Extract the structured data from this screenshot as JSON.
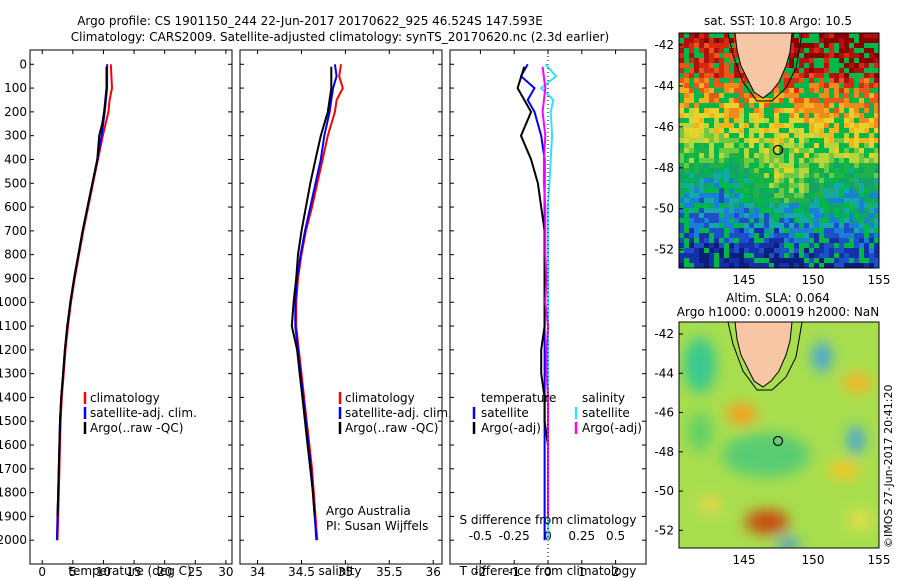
{
  "title_line1": "Argo profile: CS 1901150_244 22-Jun-2017 20170622_925 46.524S 147.593E",
  "title_line2": "Climatology: CARS2009. Satellite-adjusted climatology: synTS_20170620.nc (2.3d earlier)",
  "colors": {
    "climatology": "#ff0000",
    "satellite": "#0000ff",
    "argo": "#000000",
    "sal_satellite": "#33e0ff",
    "sal_argo": "#ff00ff"
  },
  "panel1": {
    "xlabel": "temperature (deg C)",
    "legend": [
      "climatology",
      "satellite-adj. clim.",
      "Argo(..raw -QC)"
    ]
  },
  "panel2": {
    "xlabel": "salinity",
    "legend": [
      "climatology",
      "satellite-adj. clim.",
      "Argo(..raw -QC)"
    ],
    "note1": "Argo Australia",
    "note2": "PI: Susan Wijffels"
  },
  "panel3": {
    "xlabel": "T difference from climatology",
    "s_label": "S difference from climatology",
    "legend_temp_title": "temperature",
    "legend_sal_title": "salinity",
    "legend_temp": [
      "satellite",
      "Argo(-adj)"
    ],
    "legend_sal": [
      "satellite",
      "Argo(-adj)"
    ]
  },
  "map_top": {
    "title": "sat. SST: 10.8 Argo: 10.5",
    "yticks": [
      "-42",
      "-44",
      "-46",
      "-48",
      "-50",
      "-52"
    ],
    "xticks": [
      "145",
      "150",
      "155"
    ]
  },
  "map_bottom": {
    "title1": "Altim. SLA: 0.064",
    "title2": "Argo h1000: 0.00019 h2000: NaN",
    "yticks": [
      "-42",
      "-44",
      "-46",
      "-48",
      "-50",
      "-52"
    ],
    "xticks": [
      "145",
      "150",
      "155"
    ]
  },
  "credit": "©IMOS 27-Jun-2017 20:41:20",
  "chart_data": [
    {
      "type": "line",
      "xlabel": "temperature (deg C)",
      "ylabel": "",
      "xlim": [
        -2,
        31
      ],
      "ylim": [
        2100,
        0
      ],
      "xticks": [
        0,
        5,
        10,
        15,
        20,
        25,
        30
      ],
      "yticks": [
        0,
        100,
        200,
        300,
        400,
        500,
        600,
        700,
        800,
        900,
        1000,
        1100,
        1200,
        1300,
        1400,
        1500,
        1600,
        1700,
        1800,
        1900,
        2000
      ],
      "series": [
        {
          "name": "climatology",
          "color": "#ff0000",
          "points": [
            [
              11.2,
              0
            ],
            [
              11.4,
              100
            ],
            [
              11.0,
              150
            ],
            [
              10.8,
              200
            ],
            [
              9.9,
              300
            ],
            [
              9.1,
              400
            ],
            [
              8.3,
              500
            ],
            [
              7.5,
              600
            ],
            [
              6.7,
              700
            ],
            [
              6.0,
              800
            ],
            [
              5.3,
              900
            ],
            [
              4.7,
              1000
            ],
            [
              4.2,
              1100
            ],
            [
              3.8,
              1200
            ],
            [
              3.5,
              1300
            ],
            [
              3.2,
              1400
            ],
            [
              3.0,
              1500
            ],
            [
              2.9,
              1600
            ],
            [
              2.8,
              1700
            ],
            [
              2.7,
              1800
            ],
            [
              2.6,
              1900
            ],
            [
              2.5,
              2000
            ]
          ]
        },
        {
          "name": "satellite-adj. clim.",
          "color": "#0000ff",
          "points": [
            [
              10.6,
              0
            ],
            [
              10.6,
              100
            ],
            [
              10.4,
              150
            ],
            [
              10.2,
              200
            ],
            [
              9.7,
              300
            ],
            [
              9.0,
              400
            ],
            [
              8.2,
              500
            ],
            [
              7.4,
              600
            ],
            [
              6.6,
              700
            ],
            [
              5.9,
              800
            ],
            [
              5.2,
              900
            ],
            [
              4.6,
              1000
            ],
            [
              4.1,
              1100
            ],
            [
              3.7,
              1200
            ],
            [
              3.4,
              1300
            ],
            [
              3.1,
              1400
            ],
            [
              2.9,
              1500
            ],
            [
              2.8,
              1600
            ],
            [
              2.7,
              1700
            ],
            [
              2.6,
              1800
            ],
            [
              2.5,
              1900
            ],
            [
              2.4,
              2000
            ]
          ]
        },
        {
          "name": "Argo(..raw -QC)",
          "color": "#000000",
          "points": [
            [
              10.5,
              10
            ],
            [
              10.5,
              100
            ],
            [
              10.3,
              150
            ],
            [
              10.1,
              200
            ],
            [
              9.8,
              250
            ],
            [
              9.3,
              300
            ],
            [
              9.0,
              400
            ],
            [
              8.2,
              500
            ],
            [
              7.4,
              600
            ],
            [
              6.6,
              700
            ],
            [
              5.9,
              800
            ],
            [
              5.2,
              900
            ],
            [
              4.6,
              1000
            ],
            [
              4.1,
              1100
            ],
            [
              3.7,
              1200
            ],
            [
              3.4,
              1300
            ],
            [
              3.1,
              1400
            ],
            [
              2.9,
              1500
            ],
            [
              2.8,
              1600
            ],
            [
              2.7,
              1700
            ],
            [
              2.6,
              1800
            ],
            [
              2.5,
              1900
            ]
          ]
        }
      ]
    },
    {
      "type": "line",
      "xlabel": "salinity",
      "xlim": [
        33.8,
        36.1
      ],
      "ylim": [
        2100,
        0
      ],
      "xticks": [
        34,
        34.5,
        35,
        35.5,
        36
      ],
      "series": [
        {
          "name": "climatology",
          "color": "#ff0000",
          "points": [
            [
              34.95,
              0
            ],
            [
              34.93,
              50
            ],
            [
              34.97,
              100
            ],
            [
              34.9,
              150
            ],
            [
              34.88,
              200
            ],
            [
              34.8,
              300
            ],
            [
              34.74,
              400
            ],
            [
              34.68,
              500
            ],
            [
              34.62,
              600
            ],
            [
              34.55,
              700
            ],
            [
              34.5,
              800
            ],
            [
              34.46,
              900
            ],
            [
              34.44,
              1000
            ],
            [
              34.44,
              1100
            ],
            [
              34.47,
              1200
            ],
            [
              34.5,
              1300
            ],
            [
              34.53,
              1400
            ],
            [
              34.56,
              1500
            ],
            [
              34.59,
              1600
            ],
            [
              34.62,
              1700
            ],
            [
              34.64,
              1800
            ],
            [
              34.66,
              1900
            ],
            [
              34.68,
              2000
            ]
          ]
        },
        {
          "name": "satellite-adj. clim.",
          "color": "#0000ff",
          "points": [
            [
              34.88,
              0
            ],
            [
              34.9,
              50
            ],
            [
              34.86,
              100
            ],
            [
              34.84,
              150
            ],
            [
              34.82,
              200
            ],
            [
              34.76,
              300
            ],
            [
              34.72,
              400
            ],
            [
              34.66,
              500
            ],
            [
              34.6,
              600
            ],
            [
              34.54,
              700
            ],
            [
              34.49,
              800
            ],
            [
              34.45,
              900
            ],
            [
              34.43,
              1000
            ],
            [
              34.43,
              1100
            ],
            [
              34.46,
              1200
            ],
            [
              34.49,
              1300
            ],
            [
              34.52,
              1400
            ],
            [
              34.55,
              1500
            ],
            [
              34.58,
              1600
            ],
            [
              34.61,
              1700
            ],
            [
              34.63,
              1800
            ],
            [
              34.65,
              1900
            ],
            [
              34.67,
              2000
            ]
          ]
        },
        {
          "name": "Argo(..raw -QC)",
          "color": "#000000",
          "points": [
            [
              34.84,
              10
            ],
            [
              34.84,
              100
            ],
            [
              34.8,
              200
            ],
            [
              34.72,
              300
            ],
            [
              34.66,
              400
            ],
            [
              34.6,
              500
            ],
            [
              34.55,
              600
            ],
            [
              34.5,
              700
            ],
            [
              34.46,
              800
            ],
            [
              34.44,
              900
            ],
            [
              34.41,
              1000
            ],
            [
              34.39,
              1100
            ],
            [
              34.45,
              1200
            ],
            [
              34.48,
              1300
            ],
            [
              34.51,
              1400
            ],
            [
              34.54,
              1500
            ],
            [
              34.57,
              1600
            ],
            [
              34.6,
              1700
            ],
            [
              34.63,
              1800
            ],
            [
              34.65,
              1900
            ]
          ]
        }
      ]
    },
    {
      "type": "line",
      "xlabel": "T difference from climatology",
      "x2label": "S difference from climatology",
      "xlim": [
        -2.9,
        2.9
      ],
      "x2lim": [
        -0.725,
        0.725
      ],
      "ylim": [
        2100,
        0
      ],
      "xticks": [
        -2,
        -1,
        0,
        1,
        2
      ],
      "x2ticks": [
        "-0.5",
        "-0.25",
        "0",
        "0.25",
        "0.5"
      ],
      "series": [
        {
          "name": "temperature satellite",
          "color": "#0000ff",
          "axis": "T",
          "points": [
            [
              -0.6,
              0
            ],
            [
              -0.8,
              50
            ],
            [
              -0.4,
              100
            ],
            [
              -0.6,
              150
            ],
            [
              -0.4,
              200
            ],
            [
              -0.2,
              300
            ],
            [
              -0.1,
              400
            ],
            [
              -0.1,
              500
            ],
            [
              -0.1,
              600
            ],
            [
              -0.1,
              700
            ],
            [
              -0.1,
              800
            ],
            [
              -0.1,
              900
            ],
            [
              -0.1,
              1000
            ],
            [
              -0.1,
              1100
            ],
            [
              -0.1,
              1200
            ],
            [
              -0.1,
              1300
            ],
            [
              -0.1,
              1400
            ],
            [
              -0.1,
              1500
            ],
            [
              -0.1,
              1600
            ],
            [
              -0.1,
              1700
            ],
            [
              -0.1,
              1800
            ],
            [
              -0.1,
              1900
            ],
            [
              -0.1,
              2000
            ]
          ]
        },
        {
          "name": "temperature Argo(-adj)",
          "color": "#000000",
          "axis": "T",
          "points": [
            [
              -0.7,
              10
            ],
            [
              -0.9,
              100
            ],
            [
              -0.5,
              200
            ],
            [
              -0.8,
              300
            ],
            [
              -0.5,
              400
            ],
            [
              -0.3,
              500
            ],
            [
              -0.2,
              600
            ],
            [
              -0.1,
              700
            ],
            [
              -0.1,
              800
            ],
            [
              -0.1,
              900
            ],
            [
              -0.1,
              1000
            ],
            [
              -0.1,
              1100
            ],
            [
              -0.2,
              1200
            ],
            [
              -0.2,
              1300
            ],
            [
              -0.1,
              1400
            ],
            [
              -0.1,
              1500
            ],
            [
              0.0,
              1600
            ],
            [
              0.0,
              1700
            ],
            [
              0.0,
              1800
            ],
            [
              0.0,
              1900
            ]
          ]
        },
        {
          "name": "salinity satellite",
          "color": "#33e0ff",
          "axis": "S",
          "points": [
            [
              -0.02,
              0
            ],
            [
              0.06,
              50
            ],
            [
              -0.05,
              100
            ],
            [
              0.04,
              150
            ],
            [
              0.02,
              200
            ],
            [
              0.03,
              300
            ],
            [
              0.02,
              400
            ],
            [
              0.01,
              500
            ],
            [
              0.0,
              600
            ],
            [
              0.0,
              700
            ],
            [
              0.0,
              800
            ],
            [
              0.0,
              900
            ],
            [
              0.0,
              1000
            ],
            [
              0.0,
              1100
            ],
            [
              0.0,
              1200
            ],
            [
              0.0,
              1300
            ],
            [
              0.0,
              1400
            ],
            [
              0.0,
              1500
            ],
            [
              0.0,
              1600
            ],
            [
              0.0,
              1700
            ],
            [
              0.0,
              1800
            ],
            [
              0.0,
              1900
            ],
            [
              0.0,
              2000
            ]
          ]
        },
        {
          "name": "salinity Argo(-adj)",
          "color": "#ff00ff",
          "axis": "S",
          "points": [
            [
              -0.04,
              10
            ],
            [
              -0.02,
              100
            ],
            [
              -0.04,
              200
            ],
            [
              -0.02,
              300
            ],
            [
              -0.03,
              400
            ],
            [
              -0.03,
              500
            ],
            [
              -0.02,
              600
            ],
            [
              -0.02,
              700
            ],
            [
              -0.02,
              800
            ],
            [
              -0.01,
              900
            ],
            [
              -0.02,
              1000
            ],
            [
              0.0,
              1100
            ],
            [
              -0.01,
              1200
            ],
            [
              -0.01,
              1300
            ],
            [
              0.0,
              1400
            ],
            [
              0.0,
              1500
            ],
            [
              0.0,
              1600
            ],
            [
              0.0,
              1700
            ],
            [
              0.0,
              1800
            ],
            [
              0.0,
              1900
            ]
          ]
        }
      ]
    }
  ]
}
